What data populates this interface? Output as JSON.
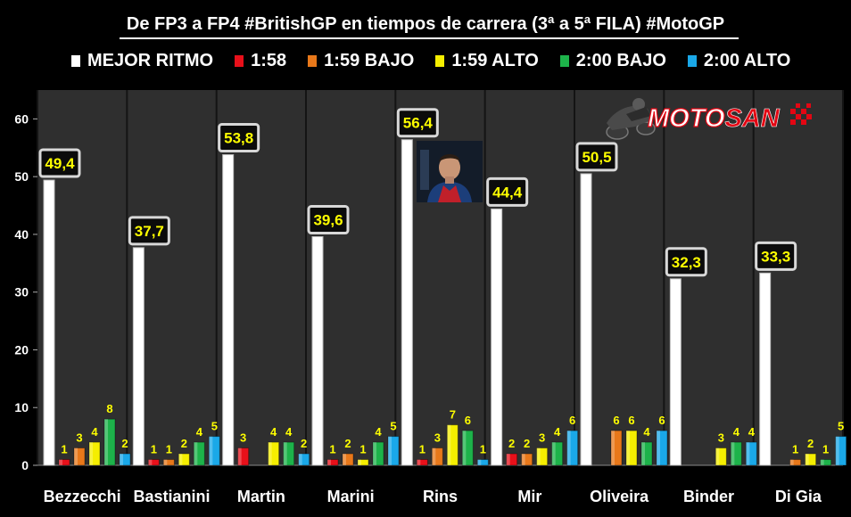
{
  "title": "De FP3 a FP4 #BritishGP en tiempos de carrera (3ª a 5ª FILA) #MotoGP",
  "logo": {
    "brand_text": "MOTOSAN",
    "brand_text_primary": "MOTO",
    "brand_text_accent": "SAN",
    "icon": "motorcycle-rider-icon",
    "accent_color": "#e30613"
  },
  "rider_photo": {
    "icon": "rider-portrait-icon"
  },
  "colors": {
    "background": "#000000",
    "plot_background": "#2f2f2f",
    "gridline": "#111111",
    "label_yellow": "#ffff00"
  },
  "chart_data": {
    "type": "bar",
    "title": "De FP3 a FP4 #BritishGP en tiempos de carrera (3ª a 5ª FILA) #MotoGP",
    "xlabel": "",
    "ylabel": "",
    "ylim": [
      0,
      65
    ],
    "yticks": [
      "0",
      "10",
      "20",
      "30",
      "40",
      "50",
      "60"
    ],
    "grid": false,
    "legend_position": "top",
    "categories": [
      "Bezzecchi",
      "Bastianini",
      "Martin",
      "Marini",
      "Rins",
      "Mir",
      "Oliveira",
      "Binder",
      "Di Gia"
    ],
    "series": [
      {
        "name": "MEJOR RITMO",
        "color": "#ffffff",
        "values": [
          49.4,
          37.7,
          53.8,
          39.6,
          56.4,
          44.4,
          50.5,
          32.3,
          33.3
        ],
        "labels": [
          "49,4",
          "37,7",
          "53,8",
          "39,6",
          "56,4",
          "44,4",
          "50,5",
          "32,3",
          "33,3"
        ]
      },
      {
        "name": "1:58",
        "color": "#e8101a",
        "values": [
          1,
          1,
          3,
          1,
          1,
          2,
          0,
          0,
          0
        ],
        "labels": [
          "1",
          "1",
          "3",
          "1",
          "1",
          "2",
          "",
          "",
          ""
        ]
      },
      {
        "name": "1:59 BAJO",
        "color": "#e8781a",
        "values": [
          3,
          1,
          0,
          2,
          3,
          2,
          6,
          0,
          1
        ],
        "labels": [
          "3",
          "1",
          "",
          "2",
          "3",
          "2",
          "6",
          "",
          "1"
        ]
      },
      {
        "name": "1:59 ALTO",
        "color": "#f5ee00",
        "values": [
          4,
          2,
          4,
          1,
          7,
          3,
          6,
          3,
          2
        ],
        "labels": [
          "4",
          "2",
          "4",
          "1",
          "7",
          "3",
          "6",
          "3",
          "2"
        ]
      },
      {
        "name": "2:00 BAJO",
        "color": "#1db34a",
        "values": [
          8,
          4,
          4,
          4,
          6,
          4,
          4,
          4,
          1
        ],
        "labels": [
          "8",
          "4",
          "4",
          "4",
          "6",
          "4",
          "4",
          "4",
          "1"
        ]
      },
      {
        "name": "2:00 ALTO",
        "color": "#1aa8e8",
        "values": [
          2,
          5,
          2,
          5,
          1,
          6,
          6,
          4,
          5
        ],
        "labels": [
          "2",
          "5",
          "2",
          "5",
          "1",
          "6",
          "6",
          "4",
          "5"
        ]
      }
    ]
  }
}
